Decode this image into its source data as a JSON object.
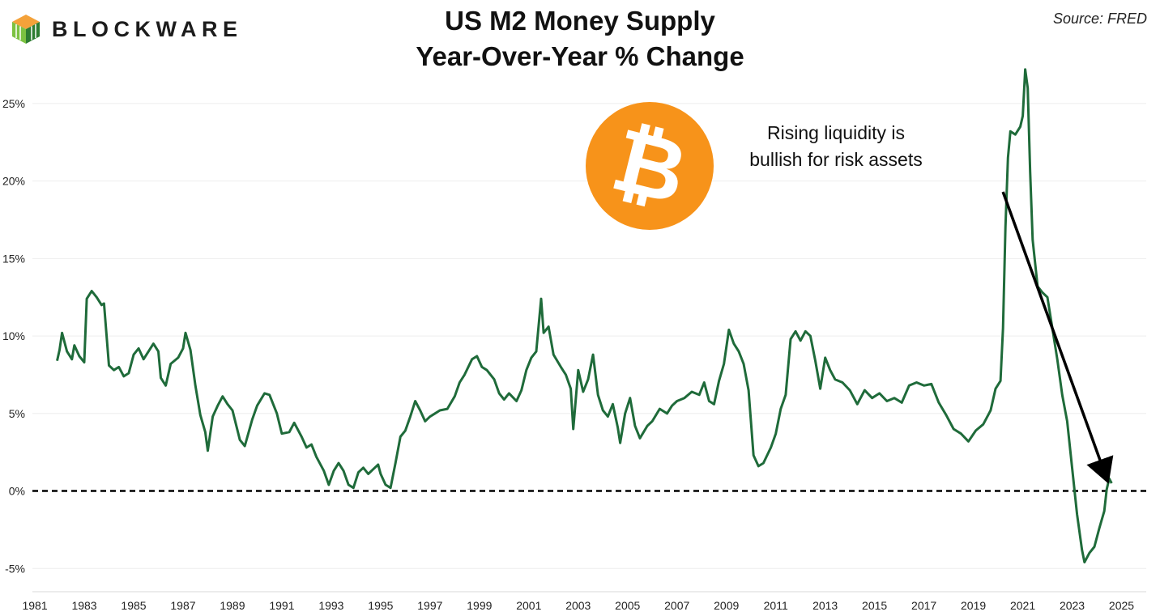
{
  "brand": {
    "name": "BLOCKWARE",
    "colors": {
      "green_dark": "#2e7d32",
      "green_light": "#7cc242",
      "orange": "#f4a23a"
    }
  },
  "header": {
    "title_line1": "US M2 Money Supply",
    "title_line2": "Year-Over-Year % Change",
    "source": "Source: FRED"
  },
  "chart_data": {
    "type": "line",
    "title": "US M2 Money Supply Year-Over-Year % Change",
    "xlabel": "",
    "ylabel": "",
    "xlim": [
      1980.9,
      2026.0
    ],
    "ylim": [
      -6.5,
      27.5
    ],
    "y_ticks": [
      -5,
      0,
      5,
      10,
      15,
      20,
      25
    ],
    "y_tick_labels": [
      "-5%",
      "0%",
      "5%",
      "10%",
      "15%",
      "20%",
      "25%"
    ],
    "x_ticks": [
      1981,
      1983,
      1985,
      1987,
      1989,
      1991,
      1993,
      1995,
      1997,
      1999,
      2001,
      2003,
      2005,
      2007,
      2009,
      2011,
      2013,
      2015,
      2017,
      2019,
      2021,
      2023,
      2025
    ],
    "x_tick_labels": [
      "1981",
      "1983",
      "1985",
      "1987",
      "1989",
      "1991",
      "1993",
      "1995",
      "1997",
      "1999",
      "2001",
      "2003",
      "2005",
      "2007",
      "2009",
      "2011",
      "2013",
      "2015",
      "2017",
      "2019",
      "2021",
      "2023",
      "2025"
    ],
    "grid": "horizontal",
    "line_color": "#1f6b3a",
    "reference_line": {
      "y": 0,
      "style": "dashed",
      "color": "#000000"
    },
    "series": [
      {
        "name": "M2 YoY % Change",
        "points": [
          [
            1981.9,
            8.4
          ],
          [
            1982.0,
            9.1
          ],
          [
            1982.1,
            10.2
          ],
          [
            1982.3,
            9.0
          ],
          [
            1982.5,
            8.5
          ],
          [
            1982.6,
            9.4
          ],
          [
            1982.8,
            8.7
          ],
          [
            1983.0,
            8.3
          ],
          [
            1983.1,
            12.4
          ],
          [
            1983.3,
            12.9
          ],
          [
            1983.5,
            12.5
          ],
          [
            1983.7,
            12.0
          ],
          [
            1983.8,
            12.1
          ],
          [
            1984.0,
            8.1
          ],
          [
            1984.2,
            7.8
          ],
          [
            1984.4,
            8.0
          ],
          [
            1984.6,
            7.4
          ],
          [
            1984.8,
            7.6
          ],
          [
            1985.0,
            8.8
          ],
          [
            1985.2,
            9.2
          ],
          [
            1985.4,
            8.5
          ],
          [
            1985.6,
            9.0
          ],
          [
            1985.8,
            9.5
          ],
          [
            1986.0,
            9.0
          ],
          [
            1986.1,
            7.3
          ],
          [
            1986.3,
            6.8
          ],
          [
            1986.5,
            8.2
          ],
          [
            1986.8,
            8.6
          ],
          [
            1987.0,
            9.2
          ],
          [
            1987.1,
            10.2
          ],
          [
            1987.3,
            9.1
          ],
          [
            1987.5,
            6.8
          ],
          [
            1987.7,
            4.9
          ],
          [
            1987.9,
            3.8
          ],
          [
            1988.0,
            2.6
          ],
          [
            1988.2,
            4.8
          ],
          [
            1988.4,
            5.5
          ],
          [
            1988.6,
            6.1
          ],
          [
            1988.8,
            5.6
          ],
          [
            1989.0,
            5.2
          ],
          [
            1989.3,
            3.3
          ],
          [
            1989.5,
            2.9
          ],
          [
            1989.8,
            4.6
          ],
          [
            1990.0,
            5.5
          ],
          [
            1990.3,
            6.3
          ],
          [
            1990.5,
            6.2
          ],
          [
            1990.8,
            5.0
          ],
          [
            1991.0,
            3.7
          ],
          [
            1991.3,
            3.8
          ],
          [
            1991.5,
            4.4
          ],
          [
            1991.8,
            3.5
          ],
          [
            1992.0,
            2.8
          ],
          [
            1992.2,
            3.0
          ],
          [
            1992.4,
            2.2
          ],
          [
            1992.7,
            1.3
          ],
          [
            1992.9,
            0.4
          ],
          [
            1993.1,
            1.3
          ],
          [
            1993.3,
            1.8
          ],
          [
            1993.5,
            1.3
          ],
          [
            1993.7,
            0.4
          ],
          [
            1993.9,
            0.2
          ],
          [
            1994.1,
            1.2
          ],
          [
            1994.3,
            1.5
          ],
          [
            1994.5,
            1.1
          ],
          [
            1994.7,
            1.4
          ],
          [
            1994.9,
            1.7
          ],
          [
            1995.0,
            1.1
          ],
          [
            1995.2,
            0.4
          ],
          [
            1995.4,
            0.2
          ],
          [
            1995.6,
            1.8
          ],
          [
            1995.8,
            3.5
          ],
          [
            1996.0,
            3.9
          ],
          [
            1996.2,
            4.8
          ],
          [
            1996.4,
            5.8
          ],
          [
            1996.6,
            5.2
          ],
          [
            1996.8,
            4.5
          ],
          [
            1997.0,
            4.8
          ],
          [
            1997.2,
            5.0
          ],
          [
            1997.4,
            5.2
          ],
          [
            1997.7,
            5.3
          ],
          [
            1998.0,
            6.1
          ],
          [
            1998.2,
            7.0
          ],
          [
            1998.4,
            7.5
          ],
          [
            1998.7,
            8.5
          ],
          [
            1998.9,
            8.7
          ],
          [
            1999.1,
            8.0
          ],
          [
            1999.3,
            7.8
          ],
          [
            1999.6,
            7.2
          ],
          [
            1999.8,
            6.3
          ],
          [
            2000.0,
            5.9
          ],
          [
            2000.2,
            6.3
          ],
          [
            2000.5,
            5.8
          ],
          [
            2000.7,
            6.5
          ],
          [
            2000.9,
            7.8
          ],
          [
            2001.1,
            8.6
          ],
          [
            2001.3,
            9.0
          ],
          [
            2001.5,
            12.4
          ],
          [
            2001.6,
            10.2
          ],
          [
            2001.8,
            10.6
          ],
          [
            2002.0,
            8.8
          ],
          [
            2002.3,
            8.0
          ],
          [
            2002.5,
            7.5
          ],
          [
            2002.7,
            6.6
          ],
          [
            2002.8,
            4.0
          ],
          [
            2003.0,
            7.8
          ],
          [
            2003.2,
            6.4
          ],
          [
            2003.4,
            7.2
          ],
          [
            2003.6,
            8.8
          ],
          [
            2003.8,
            6.2
          ],
          [
            2004.0,
            5.2
          ],
          [
            2004.2,
            4.8
          ],
          [
            2004.4,
            5.6
          ],
          [
            2004.6,
            4.1
          ],
          [
            2004.7,
            3.1
          ],
          [
            2004.9,
            5.0
          ],
          [
            2005.1,
            6.0
          ],
          [
            2005.3,
            4.2
          ],
          [
            2005.5,
            3.4
          ],
          [
            2005.8,
            4.2
          ],
          [
            2006.0,
            4.5
          ],
          [
            2006.3,
            5.3
          ],
          [
            2006.6,
            5.0
          ],
          [
            2006.8,
            5.5
          ],
          [
            2007.0,
            5.8
          ],
          [
            2007.3,
            6.0
          ],
          [
            2007.6,
            6.4
          ],
          [
            2007.9,
            6.2
          ],
          [
            2008.1,
            7.0
          ],
          [
            2008.3,
            5.8
          ],
          [
            2008.5,
            5.6
          ],
          [
            2008.7,
            7.1
          ],
          [
            2008.9,
            8.2
          ],
          [
            2009.1,
            10.4
          ],
          [
            2009.3,
            9.5
          ],
          [
            2009.5,
            9.0
          ],
          [
            2009.7,
            8.2
          ],
          [
            2009.9,
            6.5
          ],
          [
            2010.1,
            2.3
          ],
          [
            2010.3,
            1.6
          ],
          [
            2010.5,
            1.8
          ],
          [
            2010.8,
            2.8
          ],
          [
            2011.0,
            3.7
          ],
          [
            2011.2,
            5.3
          ],
          [
            2011.4,
            6.2
          ],
          [
            2011.6,
            9.8
          ],
          [
            2011.8,
            10.3
          ],
          [
            2012.0,
            9.7
          ],
          [
            2012.2,
            10.3
          ],
          [
            2012.4,
            10.0
          ],
          [
            2012.6,
            8.4
          ],
          [
            2012.8,
            6.6
          ],
          [
            2013.0,
            8.6
          ],
          [
            2013.2,
            7.8
          ],
          [
            2013.4,
            7.2
          ],
          [
            2013.7,
            7.0
          ],
          [
            2014.0,
            6.5
          ],
          [
            2014.3,
            5.6
          ],
          [
            2014.6,
            6.5
          ],
          [
            2014.9,
            6.0
          ],
          [
            2015.2,
            6.3
          ],
          [
            2015.5,
            5.8
          ],
          [
            2015.8,
            6.0
          ],
          [
            2016.1,
            5.7
          ],
          [
            2016.4,
            6.8
          ],
          [
            2016.7,
            7.0
          ],
          [
            2017.0,
            6.8
          ],
          [
            2017.3,
            6.9
          ],
          [
            2017.6,
            5.7
          ],
          [
            2017.9,
            4.9
          ],
          [
            2018.2,
            4.0
          ],
          [
            2018.5,
            3.7
          ],
          [
            2018.8,
            3.2
          ],
          [
            2019.1,
            3.9
          ],
          [
            2019.4,
            4.3
          ],
          [
            2019.7,
            5.2
          ],
          [
            2019.9,
            6.6
          ],
          [
            2020.1,
            7.1
          ],
          [
            2020.2,
            10.5
          ],
          [
            2020.3,
            17.0
          ],
          [
            2020.4,
            21.5
          ],
          [
            2020.5,
            23.2
          ],
          [
            2020.7,
            23.0
          ],
          [
            2020.9,
            23.5
          ],
          [
            2021.0,
            24.2
          ],
          [
            2021.1,
            27.2
          ],
          [
            2021.2,
            26.0
          ],
          [
            2021.3,
            20.6
          ],
          [
            2021.4,
            16.2
          ],
          [
            2021.6,
            13.2
          ],
          [
            2021.8,
            12.8
          ],
          [
            2022.0,
            12.5
          ],
          [
            2022.2,
            10.5
          ],
          [
            2022.4,
            8.5
          ],
          [
            2022.6,
            6.2
          ],
          [
            2022.8,
            4.5
          ],
          [
            2023.0,
            1.5
          ],
          [
            2023.2,
            -1.5
          ],
          [
            2023.4,
            -3.8
          ],
          [
            2023.5,
            -4.6
          ],
          [
            2023.7,
            -4.0
          ],
          [
            2023.9,
            -3.6
          ],
          [
            2024.1,
            -2.4
          ],
          [
            2024.3,
            -1.3
          ],
          [
            2024.4,
            0.1
          ],
          [
            2024.5,
            0.8
          ],
          [
            2024.6,
            0.5
          ]
        ]
      }
    ],
    "annotation": {
      "text_line1": "Rising liquidity is",
      "text_line2": "bullish for risk assets",
      "arrow_from": [
        2020.2,
        19.3
      ],
      "arrow_to": [
        2024.4,
        0.8
      ]
    }
  }
}
